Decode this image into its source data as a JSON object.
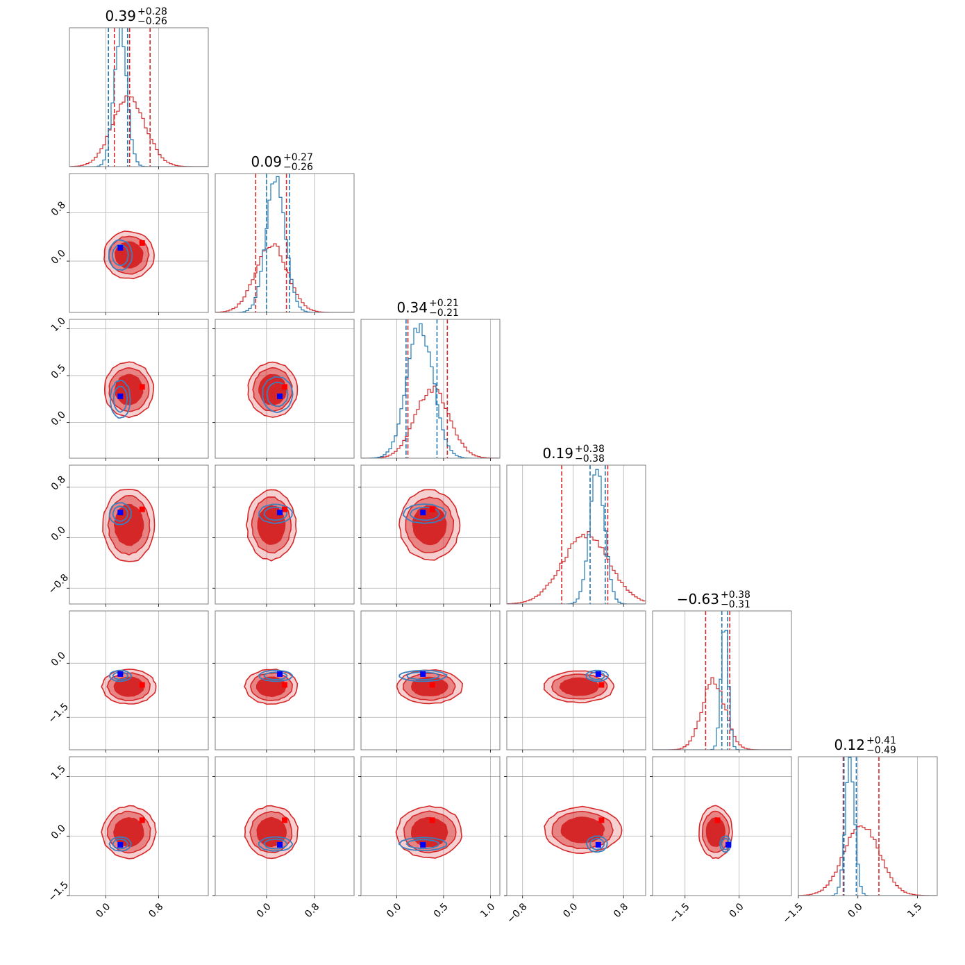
{
  "chart_data": {
    "type": "corner",
    "n_params": 6,
    "grid": true,
    "colors": {
      "posterior_a": "#d62728",
      "posterior_b": "#1f77b4",
      "truth_a": "#ff0000",
      "truth_b": "#0000ff"
    },
    "titles": [
      {
        "median": "0.39",
        "plus": "+0.28",
        "minus": "−0.26"
      },
      {
        "median": "0.09",
        "plus": "+0.27",
        "minus": "−0.26"
      },
      {
        "median": "0.34",
        "plus": "+0.21",
        "minus": "−0.21"
      },
      {
        "median": "0.19",
        "plus": "+0.38",
        "minus": "−0.38"
      },
      {
        "median": "−0.63",
        "plus": "+0.38",
        "minus": "−0.31"
      },
      {
        "median": "0.12",
        "plus": "+0.41",
        "minus": "−0.49"
      }
    ],
    "axes": [
      {
        "range": [
          -0.55,
          1.55
        ],
        "ticks": [
          0.0,
          0.8
        ],
        "tick_labels": [
          "0.0",
          "0.8"
        ]
      },
      {
        "range": [
          -0.85,
          1.45
        ],
        "ticks": [
          0.0,
          0.8
        ],
        "tick_labels": [
          "0.0",
          "0.8"
        ]
      },
      {
        "range": [
          -0.38,
          1.1
        ],
        "ticks": [
          0.0,
          0.5,
          1.0
        ],
        "tick_labels": [
          "0.0",
          "0.5",
          "1.0"
        ]
      },
      {
        "range": [
          -1.05,
          1.15
        ],
        "ticks": [
          -0.8,
          0.0,
          0.8
        ],
        "tick_labels": [
          "−0.8",
          "0.0",
          "0.8"
        ]
      },
      {
        "range": [
          -2.4,
          1.45
        ],
        "ticks": [
          -1.5,
          0.0
        ],
        "tick_labels": [
          "−1.5",
          "0.0"
        ]
      },
      {
        "range": [
          -1.5,
          2.0
        ],
        "ticks": [
          -1.5,
          0.0,
          1.5
        ],
        "tick_labels": [
          "−1.5",
          "0.0",
          "1.5"
        ]
      }
    ],
    "marginals": [
      {
        "a": {
          "mean": 0.35,
          "sd": 0.25,
          "q": [
            0.13,
            0.36,
            0.67
          ]
        },
        "b": {
          "mean": 0.22,
          "sd": 0.1,
          "q": [
            0.04,
            0.33
          ]
        }
      },
      {
        "a": {
          "mean": 0.08,
          "sd": 0.26,
          "q": [
            -0.18,
            0.33
          ]
        },
        "b": {
          "mean": 0.15,
          "sd": 0.16,
          "q": [
            0.0,
            0.38
          ]
        }
      },
      {
        "a": {
          "mean": 0.38,
          "sd": 0.18,
          "q": [
            0.12,
            0.54
          ]
        },
        "b": {
          "mean": 0.25,
          "sd": 0.14,
          "q": [
            0.1,
            0.43
          ]
        }
      },
      {
        "a": {
          "mean": 0.2,
          "sd": 0.37,
          "q": [
            -0.18,
            0.55
          ]
        },
        "b": {
          "mean": 0.38,
          "sd": 0.12,
          "q": [
            0.27,
            0.51
          ]
        }
      },
      {
        "a": {
          "mean": -0.71,
          "sd": 0.32,
          "q": [
            -0.93,
            -0.26
          ]
        },
        "b": {
          "mean": -0.4,
          "sd": 0.1,
          "q": [
            -0.48,
            -0.32
          ]
        }
      },
      {
        "a": {
          "mean": 0.1,
          "sd": 0.45,
          "q": [
            -0.37,
            0.53
          ]
        },
        "b": {
          "mean": -0.2,
          "sd": 0.12,
          "q": [
            -0.35,
            -0.04
          ]
        }
      }
    ],
    "truth_blue": [
      0.22,
      0.22,
      0.28,
      0.4,
      -0.3,
      -0.22
    ],
    "truth_red": [
      0.55,
      0.3,
      0.38,
      0.45,
      -0.6,
      0.4
    ],
    "contours": [
      {
        "row": 1,
        "col": 0,
        "a": {
          "cx": 0.35,
          "cy": 0.1,
          "rx": 0.26,
          "ry": 0.27
        },
        "b": {
          "cx": 0.22,
          "cy": 0.1,
          "rx": 0.14,
          "ry": 0.2
        }
      },
      {
        "row": 2,
        "col": 0,
        "a": {
          "cx": 0.35,
          "cy": 0.35,
          "rx": 0.26,
          "ry": 0.2
        },
        "b": {
          "cx": 0.22,
          "cy": 0.25,
          "rx": 0.12,
          "ry": 0.16
        }
      },
      {
        "row": 2,
        "col": 1,
        "a": {
          "cx": 0.1,
          "cy": 0.35,
          "rx": 0.28,
          "ry": 0.2
        },
        "b": {
          "cx": 0.18,
          "cy": 0.3,
          "rx": 0.2,
          "ry": 0.15
        }
      },
      {
        "row": 3,
        "col": 0,
        "a": {
          "cx": 0.35,
          "cy": 0.2,
          "rx": 0.27,
          "ry": 0.4
        },
        "b": {
          "cx": 0.22,
          "cy": 0.38,
          "rx": 0.13,
          "ry": 0.14
        }
      },
      {
        "row": 3,
        "col": 1,
        "a": {
          "cx": 0.08,
          "cy": 0.2,
          "rx": 0.28,
          "ry": 0.38
        },
        "b": {
          "cx": 0.15,
          "cy": 0.38,
          "rx": 0.22,
          "ry": 0.12
        }
      },
      {
        "row": 3,
        "col": 2,
        "a": {
          "cx": 0.35,
          "cy": 0.2,
          "rx": 0.22,
          "ry": 0.38
        },
        "b": {
          "cx": 0.3,
          "cy": 0.38,
          "rx": 0.18,
          "ry": 0.12
        }
      },
      {
        "row": 4,
        "col": 0,
        "a": {
          "cx": 0.35,
          "cy": -0.65,
          "rx": 0.28,
          "ry": 0.33
        },
        "b": {
          "cx": 0.22,
          "cy": -0.35,
          "rx": 0.13,
          "ry": 0.12
        }
      },
      {
        "row": 4,
        "col": 1,
        "a": {
          "cx": 0.08,
          "cy": -0.65,
          "rx": 0.3,
          "ry": 0.33
        },
        "b": {
          "cx": 0.15,
          "cy": -0.35,
          "rx": 0.22,
          "ry": 0.12
        }
      },
      {
        "row": 4,
        "col": 2,
        "a": {
          "cx": 0.35,
          "cy": -0.65,
          "rx": 0.24,
          "ry": 0.32
        },
        "b": {
          "cx": 0.28,
          "cy": -0.35,
          "rx": 0.2,
          "ry": 0.12
        }
      },
      {
        "row": 4,
        "col": 3,
        "a": {
          "cx": 0.1,
          "cy": -0.65,
          "rx": 0.38,
          "ry": 0.3
        },
        "b": {
          "cx": 0.38,
          "cy": -0.35,
          "rx": 0.14,
          "ry": 0.12
        }
      },
      {
        "row": 5,
        "col": 0,
        "a": {
          "cx": 0.35,
          "cy": 0.1,
          "rx": 0.28,
          "ry": 0.45
        },
        "b": {
          "cx": 0.22,
          "cy": -0.2,
          "rx": 0.13,
          "ry": 0.14
        }
      },
      {
        "row": 5,
        "col": 1,
        "a": {
          "cx": 0.08,
          "cy": 0.1,
          "rx": 0.3,
          "ry": 0.45
        },
        "b": {
          "cx": 0.15,
          "cy": -0.2,
          "rx": 0.22,
          "ry": 0.14
        }
      },
      {
        "row": 5,
        "col": 2,
        "a": {
          "cx": 0.35,
          "cy": 0.1,
          "rx": 0.24,
          "ry": 0.45
        },
        "b": {
          "cx": 0.28,
          "cy": -0.2,
          "rx": 0.2,
          "ry": 0.13
        }
      },
      {
        "row": 5,
        "col": 3,
        "a": {
          "cx": 0.15,
          "cy": 0.15,
          "rx": 0.42,
          "ry": 0.4
        },
        "b": {
          "cx": 0.38,
          "cy": -0.2,
          "rx": 0.13,
          "ry": 0.16
        }
      },
      {
        "row": 5,
        "col": 4,
        "a": {
          "cx": -0.65,
          "cy": 0.1,
          "rx": 0.32,
          "ry": 0.45
        },
        "b": {
          "cx": -0.38,
          "cy": -0.2,
          "rx": 0.12,
          "ry": 0.16
        }
      }
    ]
  }
}
